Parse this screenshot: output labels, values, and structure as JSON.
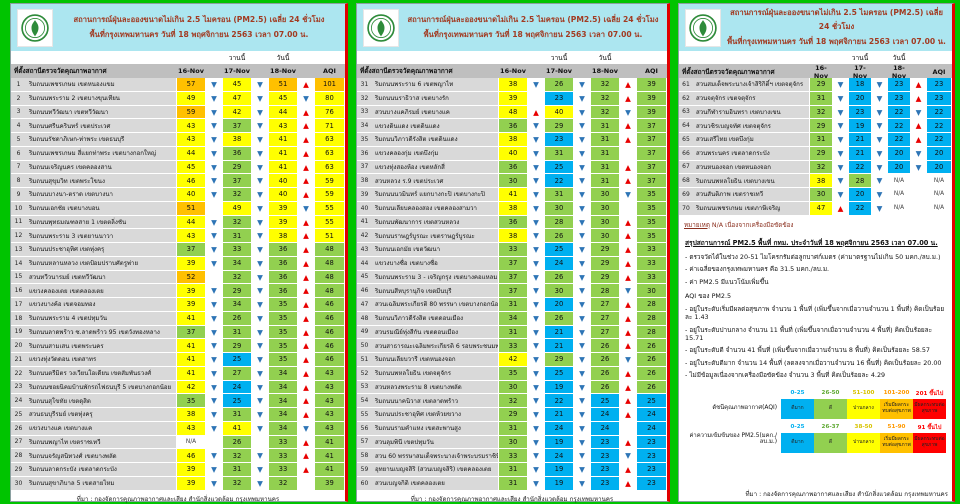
{
  "header": {
    "title_line1": "สถานการณ์ฝุ่นละอองขนาดไม่เกิน 2.5 ไมครอน (PM2.5) เฉลี่ย 24 ชั่วโมง",
    "title_line2": "พื้นที่กรุงเทพมหานคร วันที่ 18 พฤศจิกายน 2563 เวลา 07.00 น.",
    "yesterday_label": "วานนี้",
    "today_label": "วันนี้"
  },
  "columns": {
    "station": "ที่ตั้งสถานีตรวจวัดคุณภาพอากาศ",
    "d16": "16-Nov",
    "d17": "17-Nov",
    "d18": "18-Nov",
    "aqi": "AQI"
  },
  "source": "ที่มา : กองจัดการคุณภาพอากาศและเสียง สำนักสิ่งแวดล้อม กรุงเทพมหานคร",
  "note": {
    "label": "หมายเหตุ",
    "text": " N/A เนื่องจากเครื่องมือขัดข้อง"
  },
  "palette": {
    "very_good_blue": "#00b0f0",
    "good_green": "#92d050",
    "moderate_yellow": "#ffff00",
    "begin_affect_orange": "#ffc000",
    "affect_red": "#ff0000",
    "arrow_up_red": "#e80000",
    "arrow_down_blue": "#2e75b6",
    "header_cyan": "#ace6f0",
    "title_red": "#a23b22",
    "frame_green": "#00c400"
  },
  "panels": [
    {
      "stations": [
        [
          1,
          "ริมถนนเพชรเกษม เขตหนองแขม",
          "57",
          "o",
          "d",
          "45",
          "y",
          "d",
          "51",
          "o",
          "u",
          "101",
          "o"
        ],
        [
          2,
          "ริมถนนพระราม 2 เขตบางขุนเทียน",
          "49",
          "y",
          "d",
          "47",
          "y",
          "d",
          "45",
          "y",
          "d",
          "80",
          "y"
        ],
        [
          3,
          "ริมถนนทวีวัฒนา เขตทวีวัฒนา",
          "59",
          "o",
          "d",
          "42",
          "y",
          "d",
          "44",
          "y",
          "u",
          "76",
          "y"
        ],
        [
          4,
          "ริมถนนศรีนครินทร์ เขตประเวศ",
          "43",
          "y",
          "d",
          "37",
          "g",
          "d",
          "43",
          "y",
          "u",
          "71",
          "y"
        ],
        [
          5,
          "ริมถนนรัชดาภิเษก-ท่าพระ เขตธนบุรี",
          "43",
          "y",
          "d",
          "38",
          "y",
          "d",
          "41",
          "y",
          "u",
          "63",
          "y"
        ],
        [
          6,
          "ริมถนนเพชรเกษม สี่แยกท่าพระ เขตบางกอกใหญ่",
          "44",
          "y",
          "d",
          "36",
          "g",
          "d",
          "41",
          "y",
          "u",
          "63",
          "y"
        ],
        [
          7,
          "ริมถนนเจริญนคร เขตคลองสาน",
          "45",
          "y",
          "d",
          "29",
          "g",
          "d",
          "41",
          "y",
          "u",
          "63",
          "y"
        ],
        [
          8,
          "ริมถนนสุขุมวิท เขตพระโขนง",
          "46",
          "y",
          "d",
          "37",
          "g",
          "d",
          "40",
          "y",
          "u",
          "59",
          "y"
        ],
        [
          9,
          "ริมถนนบางนา-ตราด เขตบางนา",
          "40",
          "y",
          "d",
          "32",
          "g",
          "d",
          "40",
          "y",
          "u",
          "59",
          "y"
        ],
        [
          10,
          "ริมถนนเอกชัย เขตบางบอน",
          "51",
          "o",
          "",
          "49",
          "y",
          "d",
          "39",
          "y",
          "d",
          "55",
          "y"
        ],
        [
          11,
          "ริมถนนพุทธมณฑลสาย 1 เขตตลิ่งชัน",
          "44",
          "y",
          "d",
          "32",
          "g",
          "d",
          "39",
          "y",
          "u",
          "55",
          "y"
        ],
        [
          12,
          "ริมถนนพระราม 3 เขตยานนาวา",
          "43",
          "y",
          "d",
          "31",
          "g",
          "d",
          "38",
          "y",
          "u",
          "51",
          "y"
        ],
        [
          13,
          "ริมถนนประชาอุทิศ เขตทุ่งครุ",
          "37",
          "g",
          "d",
          "33",
          "g",
          "d",
          "36",
          "g",
          "u",
          "48",
          "g"
        ],
        [
          14,
          "ริมถนนหลานหลวง เขตป้อมปราบศัตรูพ่าย",
          "39",
          "y",
          "d",
          "34",
          "g",
          "d",
          "36",
          "g",
          "u",
          "48",
          "g"
        ],
        [
          15,
          "สวนทวีวนารมย์ เขตทวีวัฒนา",
          "52",
          "o",
          "",
          "32",
          "g",
          "d",
          "36",
          "g",
          "u",
          "48",
          "g"
        ],
        [
          16,
          "แขวงคลองเตย เขตคลองเตย",
          "39",
          "y",
          "d",
          "29",
          "g",
          "d",
          "36",
          "g",
          "u",
          "48",
          "g"
        ],
        [
          17,
          "แขวงบางค้อ เขตจอมทอง",
          "39",
          "y",
          "d",
          "34",
          "g",
          "d",
          "35",
          "g",
          "u",
          "46",
          "g"
        ],
        [
          18,
          "ริมถนนพระราม 4 เขตปทุมวัน",
          "41",
          "y",
          "d",
          "26",
          "g",
          "d",
          "35",
          "g",
          "u",
          "46",
          "g"
        ],
        [
          19,
          "ริมถนนลาดพร้าว ซ.ลาดพร้าว 95 เขตวังทองหลาง",
          "37",
          "g",
          "d",
          "31",
          "g",
          "d",
          "35",
          "g",
          "u",
          "46",
          "g"
        ],
        [
          20,
          "ริมถนนสามเสน เขตพระนคร",
          "41",
          "y",
          "d",
          "29",
          "g",
          "d",
          "35",
          "g",
          "u",
          "46",
          "g"
        ],
        [
          21,
          "แขวงทุ่งวัดดอน เขตสาทร",
          "41",
          "y",
          "d",
          "25",
          "b",
          "d",
          "35",
          "g",
          "u",
          "46",
          "g"
        ],
        [
          22,
          "ริมถนนตรีมิตร วงเวียนโอเดียน เขตสัมพันธวงศ์",
          "41",
          "y",
          "d",
          "27",
          "g",
          "d",
          "34",
          "g",
          "u",
          "43",
          "g"
        ],
        [
          23,
          "ริมถนนซอยนิคมบ้านพักรถไฟธนบุรี 5 เขตบางกอกน้อย",
          "42",
          "y",
          "d",
          "24",
          "b",
          "d",
          "34",
          "g",
          "u",
          "43",
          "g"
        ],
        [
          24,
          "ริมถนนสุโขทัย เขตดุสิต",
          "35",
          "g",
          "d",
          "25",
          "b",
          "d",
          "34",
          "g",
          "u",
          "43",
          "g"
        ],
        [
          25,
          "สวนธนบุรีรมย์ เขตทุ่งครุ",
          "38",
          "y",
          "d",
          "31",
          "g",
          "d",
          "34",
          "g",
          "u",
          "43",
          "g"
        ],
        [
          26,
          "แขวงบางแค เขตบางแค",
          "43",
          "y",
          "d",
          "41",
          "y",
          "d",
          "34",
          "g",
          "d",
          "43",
          "g"
        ],
        [
          27,
          "ริมถนนพญาไท เขตราชเทวี",
          "N/A",
          "w",
          "",
          "26",
          "g",
          "",
          "33",
          "g",
          "u",
          "41",
          "g"
        ],
        [
          28,
          "ริมถนนจรัญสนิทวงศ์ เขตบางพลัด",
          "46",
          "y",
          "d",
          "32",
          "g",
          "d",
          "33",
          "g",
          "u",
          "41",
          "g"
        ],
        [
          29,
          "ริมถนนลาดกระบัง เขตลาดกระบัง",
          "39",
          "y",
          "d",
          "31",
          "g",
          "d",
          "33",
          "g",
          "u",
          "41",
          "g"
        ],
        [
          30,
          "ริมถนนสุขาภิบาล 5 เขตสายไหม",
          "39",
          "y",
          "d",
          "32",
          "g",
          "d",
          "32",
          "g",
          "",
          "39",
          "g"
        ]
      ]
    },
    {
      "stations": [
        [
          31,
          "ริมถนนพระราม 6 เขตพญาไท",
          "38",
          "y",
          "d",
          "26",
          "g",
          "d",
          "32",
          "g",
          "u",
          "39",
          "g"
        ],
        [
          32,
          "ริมถนนนราธิวาส เขตบางรัก",
          "39",
          "y",
          "",
          "23",
          "b",
          "d",
          "32",
          "g",
          "u",
          "39",
          "g"
        ],
        [
          33,
          "สวนบางแคภิรมย์ เขตบางแค",
          "48",
          "y",
          "u",
          "40",
          "y",
          "d",
          "32",
          "g",
          "d",
          "39",
          "g"
        ],
        [
          34,
          "แขวงดินแดง เขตดินแดง",
          "36",
          "g",
          "d",
          "29",
          "g",
          "d",
          "31",
          "g",
          "u",
          "37",
          "g"
        ],
        [
          35,
          "ริมถนนวิภาวดีรังสิต เขตดินแดง",
          "38",
          "y",
          "d",
          "23",
          "b",
          "d",
          "31",
          "g",
          "u",
          "37",
          "g"
        ],
        [
          36,
          "แขวงคลองกุ่ม เขตบึงกุ่ม",
          "40",
          "y",
          "d",
          "31",
          "g",
          "d",
          "31",
          "g",
          "",
          "37",
          "g"
        ],
        [
          37,
          "แขวงทุ่งสองห้อง เขตหลักสี่",
          "36",
          "g",
          "d",
          "25",
          "b",
          "d",
          "31",
          "g",
          "u",
          "37",
          "g"
        ],
        [
          38,
          "สวนหลวง ร.9 เขตประเวศ",
          "30",
          "g",
          "d",
          "22",
          "b",
          "d",
          "31",
          "g",
          "u",
          "37",
          "g"
        ],
        [
          39,
          "ริมถนนนวมินทร์ แยกบางกะปิ เขตบางกะปิ",
          "41",
          "y",
          "d",
          "31",
          "g",
          "d",
          "30",
          "g",
          "d",
          "35",
          "g"
        ],
        [
          40,
          "ริมถนนเลียบคลองสอง เขตคลองสามวา",
          "38",
          "y",
          "d",
          "30",
          "g",
          "d",
          "30",
          "g",
          "",
          "35",
          "g"
        ],
        [
          41,
          "ริมถนนพัฒนาการ เขตสวนหลวง",
          "36",
          "g",
          "d",
          "28",
          "g",
          "d",
          "30",
          "g",
          "u",
          "35",
          "g"
        ],
        [
          42,
          "ริมถนนราษฎร์บูรณะ เขตราษฎร์บูรณะ",
          "38",
          "y",
          "d",
          "26",
          "g",
          "d",
          "30",
          "g",
          "u",
          "35",
          "g"
        ],
        [
          43,
          "ริมถนนเอกมัย เขตวัฒนา",
          "33",
          "g",
          "d",
          "25",
          "b",
          "d",
          "29",
          "g",
          "u",
          "33",
          "g"
        ],
        [
          44,
          "แขวงบางซื่อ เขตบางซื่อ",
          "37",
          "g",
          "d",
          "24",
          "b",
          "d",
          "29",
          "g",
          "u",
          "33",
          "g"
        ],
        [
          45,
          "ริมถนนพระราม 3 - เจริญกรุง เขตบางคอแหลม",
          "37",
          "g",
          "d",
          "26",
          "g",
          "d",
          "29",
          "g",
          "u",
          "33",
          "g"
        ],
        [
          46,
          "ริมถนนสีหบุรานุกิจ เขตมีนบุรี",
          "37",
          "g",
          "d",
          "30",
          "g",
          "d",
          "28",
          "g",
          "d",
          "30",
          "g"
        ],
        [
          47,
          "สวนเฉลิมพระเกียรติ 80 พรรษา เขตบางกอกน้อย",
          "31",
          "g",
          "d",
          "20",
          "b",
          "d",
          "27",
          "g",
          "u",
          "28",
          "g"
        ],
        [
          48,
          "ริมถนนวิภาวดีรังสิต เขตดอนเมือง",
          "34",
          "g",
          "d",
          "26",
          "g",
          "d",
          "27",
          "g",
          "u",
          "28",
          "g"
        ],
        [
          49,
          "สวนรมณีย์ทุ่งสีกัน เขตดอนเมือง",
          "31",
          "g",
          "d",
          "21",
          "b",
          "d",
          "27",
          "g",
          "u",
          "28",
          "g"
        ],
        [
          50,
          "สวนสาธารณะเฉลิมพระเกียรติ 6 รอบพระชนมพรรษา",
          "33",
          "g",
          "d",
          "21",
          "b",
          "d",
          "26",
          "g",
          "u",
          "26",
          "g"
        ],
        [
          51,
          "ริมถนนเลียบวารี เขตหนองจอก",
          "42",
          "y",
          "d",
          "29",
          "g",
          "d",
          "26",
          "g",
          "d",
          "26",
          "g"
        ],
        [
          52,
          "ริมถนนพหลโยธิน เขตจตุจักร",
          "35",
          "g",
          "d",
          "25",
          "b",
          "d",
          "26",
          "g",
          "u",
          "26",
          "g"
        ],
        [
          53,
          "สวนหลวงพระราม 8 เขตบางพลัด",
          "30",
          "g",
          "d",
          "19",
          "b",
          "d",
          "26",
          "g",
          "u",
          "26",
          "g"
        ],
        [
          54,
          "ริมถนนนาคนิวาส เขตลาดพร้าว",
          "32",
          "g",
          "d",
          "22",
          "b",
          "d",
          "25",
          "b",
          "u",
          "25",
          "b"
        ],
        [
          55,
          "ริมถนนประชาอุทิศ เขตห้วยขวาง",
          "29",
          "g",
          "d",
          "21",
          "b",
          "d",
          "24",
          "b",
          "u",
          "24",
          "b"
        ],
        [
          56,
          "ริมถนนรามคำแหง เขตสะพานสูง",
          "31",
          "g",
          "d",
          "24",
          "b",
          "d",
          "24",
          "b",
          "",
          "24",
          "b"
        ],
        [
          57,
          "สวนลุมพินี เขตปทุมวัน",
          "30",
          "g",
          "d",
          "19",
          "b",
          "d",
          "23",
          "b",
          "u",
          "23",
          "b"
        ],
        [
          58,
          "สวน 60 พรรษาสมเด็จพระนางเจ้าพระบรมราชินีนาถ",
          "33",
          "g",
          "d",
          "24",
          "b",
          "d",
          "23",
          "b",
          "d",
          "23",
          "b"
        ],
        [
          59,
          "อุทยานเบญจสิริ (สวนเบญจสิริ) เขตคลองเตย",
          "31",
          "g",
          "d",
          "19",
          "b",
          "d",
          "23",
          "b",
          "u",
          "23",
          "b"
        ],
        [
          60,
          "สวนเบญจกิติ เขตคลองเตย",
          "31",
          "g",
          "d",
          "19",
          "b",
          "d",
          "23",
          "b",
          "u",
          "23",
          "b"
        ]
      ]
    },
    {
      "stations": [
        [
          61,
          "สวนสมเด็จพระนางเจ้าสิริกิติ์ฯ เขตจตุจักร",
          "29",
          "g",
          "d",
          "18",
          "b",
          "d",
          "23",
          "b",
          "u",
          "23",
          "b"
        ],
        [
          62,
          "สวนจตุจักร เขตจตุจักร",
          "31",
          "g",
          "d",
          "20",
          "b",
          "d",
          "23",
          "b",
          "u",
          "23",
          "b"
        ],
        [
          63,
          "สวนกีฬารามอินทรา เขตบางเขน",
          "32",
          "g",
          "d",
          "23",
          "b",
          "d",
          "22",
          "b",
          "d",
          "22",
          "b"
        ],
        [
          64,
          "สวนวชิรเบญจทัศ เขตจตุจักร",
          "29",
          "g",
          "d",
          "19",
          "b",
          "d",
          "22",
          "b",
          "u",
          "22",
          "b"
        ],
        [
          65,
          "สวนเสรีไทย เขตบึงกุ่ม",
          "31",
          "g",
          "d",
          "21",
          "b",
          "d",
          "22",
          "b",
          "u",
          "22",
          "b"
        ],
        [
          66,
          "สวนพระนคร เขตลาดกระบัง",
          "29",
          "g",
          "d",
          "21",
          "b",
          "d",
          "20",
          "b",
          "d",
          "20",
          "b"
        ],
        [
          67,
          "สวนหนองจอก เขตหนองจอก",
          "32",
          "g",
          "d",
          "22",
          "b",
          "d",
          "20",
          "b",
          "d",
          "20",
          "b"
        ],
        [
          68,
          "ริมถนนพหลโยธิน เขตบางเขน",
          "38",
          "y",
          "d",
          "28",
          "g",
          "d",
          "N/A",
          "w",
          "",
          "N/A",
          "w"
        ],
        [
          69,
          "สวนสันติภาพ เขตราชเทวี",
          "30",
          "g",
          "d",
          "20",
          "b",
          "d",
          "N/A",
          "w",
          "",
          "N/A",
          "w"
        ],
        [
          70,
          "ริมถนนเพชรเกษม เขตภาษีเจริญ",
          "47",
          "y",
          "u",
          "22",
          "b",
          "d",
          "N/A",
          "w",
          "",
          "N/A",
          "w"
        ]
      ]
    }
  ],
  "summary": {
    "heading": "สรุปสถานการณ์ PM2.5 พื้นที่ กทม. ประจำวันที่ 18 พฤศจิกายน 2563 เวลา 07.00 น.",
    "lines": [
      "- ตรวจวัดได้ในช่วง 20-51 ไมโครกรัมต่อลูกบาศก์เมตร (ค่ามาตรฐานไม่เกิน 50 มคก./ลบ.ม.)",
      "- ค่าเฉลี่ยของกรุงเทพมหานคร คือ 31.5 มคก./ลบ.ม.",
      "- ค่า PM2.5 มีแนวโน้มเพิ่มขึ้น"
    ],
    "aqi_heading": "AQI ของ PM2.5",
    "aqi_lines": [
      "- อยู่ในระดับเริ่มมีผลต่อสุขภาพ จำนวน 1 พื้นที่ (เพิ่มขึ้นจากเมื่อวานจำนวน 1 พื้นที่) คิดเป็นร้อยละ 1.43",
      "- อยู่ในระดับปานกลาง จำนวน 11 พื้นที่ (เพิ่มขึ้นจากเมื่อวานจำนวน 4 พื้นที่) คิดเป็นร้อยละ 15.71",
      "- อยู่ในระดับดี จำนวน 41 พื้นที่ (เพิ่มขึ้นจากเมื่อวานจำนวน 8 พื้นที่) คิดเป็นร้อยละ 58.57",
      "- อยู่ในระดับดีมาก จำนวน 14 พื้นที่ (ลดลงจากเมื่อวานจำนวน 16 พื้นที่) คิดเป็นร้อยละ 20.00",
      "- ไม่มีข้อมูลเนื่องจากเครื่องมือขัดข้อง จำนวน 3 พื้นที่ คิดเป็นร้อยละ 4.29"
    ]
  },
  "legend": {
    "levels": [
      {
        "label": "ดีมาก",
        "key": "b"
      },
      {
        "label": "ดี",
        "key": "g"
      },
      {
        "label": "ปานกลาง",
        "key": "y"
      },
      {
        "label": "เริ่มมีผลกระทบต่อสุขภาพ",
        "key": "o"
      },
      {
        "label": "มีผลกระทบต่อสุขภาพ",
        "key": "r"
      }
    ],
    "rows": [
      {
        "label": "ดัชนีคุณภาพอากาศ(AQI)",
        "ranges": [
          "0-25",
          "26-50",
          "51-100",
          "101-200",
          "201 ขึ้นไป"
        ]
      },
      {
        "label": "ค่าความเข้มข้นของ PM2.5(มคก./ลบ.ม.)",
        "ranges": [
          "0-25",
          "26-37",
          "38-50",
          "51-90",
          "91 ขึ้นไป"
        ]
      }
    ]
  }
}
